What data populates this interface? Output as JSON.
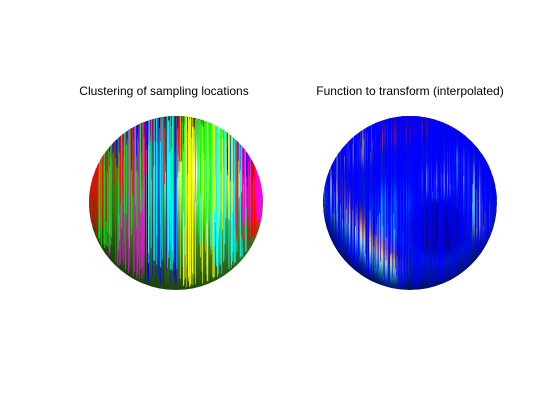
{
  "chart_data": [
    {
      "type": "scatter",
      "title": "Clustering of sampling locations",
      "description_of_surface": "lit sphere, green shading",
      "cluster_colors": [
        "#0000ff",
        "#ff0000",
        "#00ff00",
        "#000000",
        "#ffff00",
        "#00ffff",
        "#ff00ff"
      ],
      "sphere_color": "#3a7d1a",
      "marker": "diamond"
    },
    {
      "type": "heatmap",
      "title": "Function to transform (interpolated)",
      "colormap": [
        "#00008f",
        "#0000ff",
        "#00ffff",
        "#ffff00",
        "#ff0000",
        "#800000"
      ],
      "sample_color": "#0000ff",
      "marker": "diamond"
    }
  ]
}
